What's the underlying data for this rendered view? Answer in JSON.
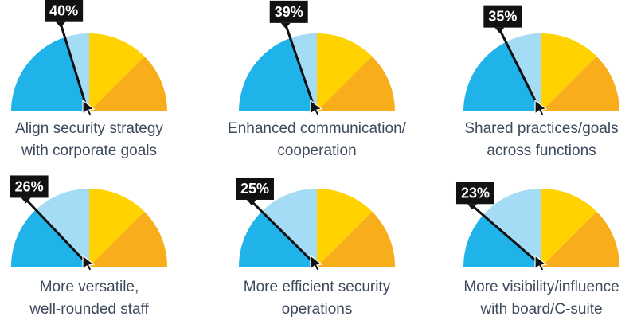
{
  "colors": {
    "blue_dark": "#1fb3ea",
    "blue_mid": "#7ecff3",
    "blue_light": "#a4dcf6",
    "yellow": "#ffd200",
    "orange": "#f8ae1b",
    "needle": "#111111",
    "label_bg": "#111111",
    "label_text": "#ffffff",
    "caption_text": "#3d4a5c"
  },
  "chart_data": {
    "type": "gauge",
    "unit": "%",
    "gauges": [
      {
        "value": 40,
        "value_label": "40%",
        "caption_lines": [
          "Align security strategy",
          "with corporate goals"
        ]
      },
      {
        "value": 39,
        "value_label": "39%",
        "caption_lines": [
          "Enhanced communication/",
          "cooperation"
        ]
      },
      {
        "value": 35,
        "value_label": "35%",
        "caption_lines": [
          "Shared practices/goals",
          "across functions"
        ]
      },
      {
        "value": 26,
        "value_label": "26%",
        "caption_lines": [
          "More versatile,",
          "well-rounded staff"
        ]
      },
      {
        "value": 25,
        "value_label": "25%",
        "caption_lines": [
          "More efficient security",
          "operations"
        ]
      },
      {
        "value": 23,
        "value_label": "23%",
        "caption_lines": [
          "More visibility/influence",
          "with board/C-suite"
        ]
      }
    ]
  }
}
